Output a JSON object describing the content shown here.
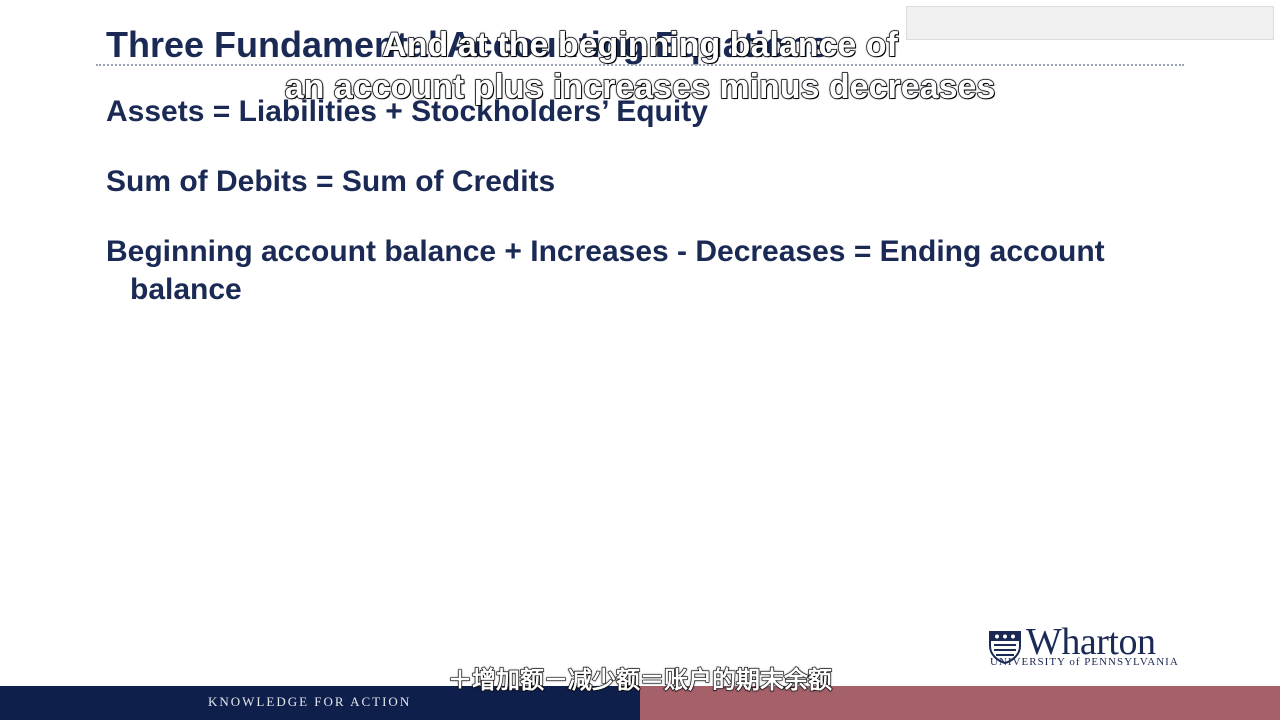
{
  "slide": {
    "title": "Three Fundamental Accounting Equations",
    "equations": {
      "eq1": "Assets = Liabilities + Stockholders’ Equity",
      "eq2": "Sum of Debits = Sum of Credits",
      "eq3_line1": "Beginning account balance + Increases - Decreases = Ending account",
      "eq3_line2": "balance"
    }
  },
  "captions": {
    "english_line1": "And at the beginning balance of",
    "english_line2": "an account plus increases minus decreases",
    "chinese": "＋增加额－减少额＝账户的期末余额"
  },
  "logo": {
    "name": "Wharton",
    "subtitle": "UNIVERSITY of PENNSYLVANIA"
  },
  "footer": {
    "tagline": "KNOWLEDGE FOR ACTION"
  },
  "colors": {
    "navy": "#1b2a55",
    "footer_navy": "#0f1f4b",
    "footer_mauve": "#a5606a"
  }
}
